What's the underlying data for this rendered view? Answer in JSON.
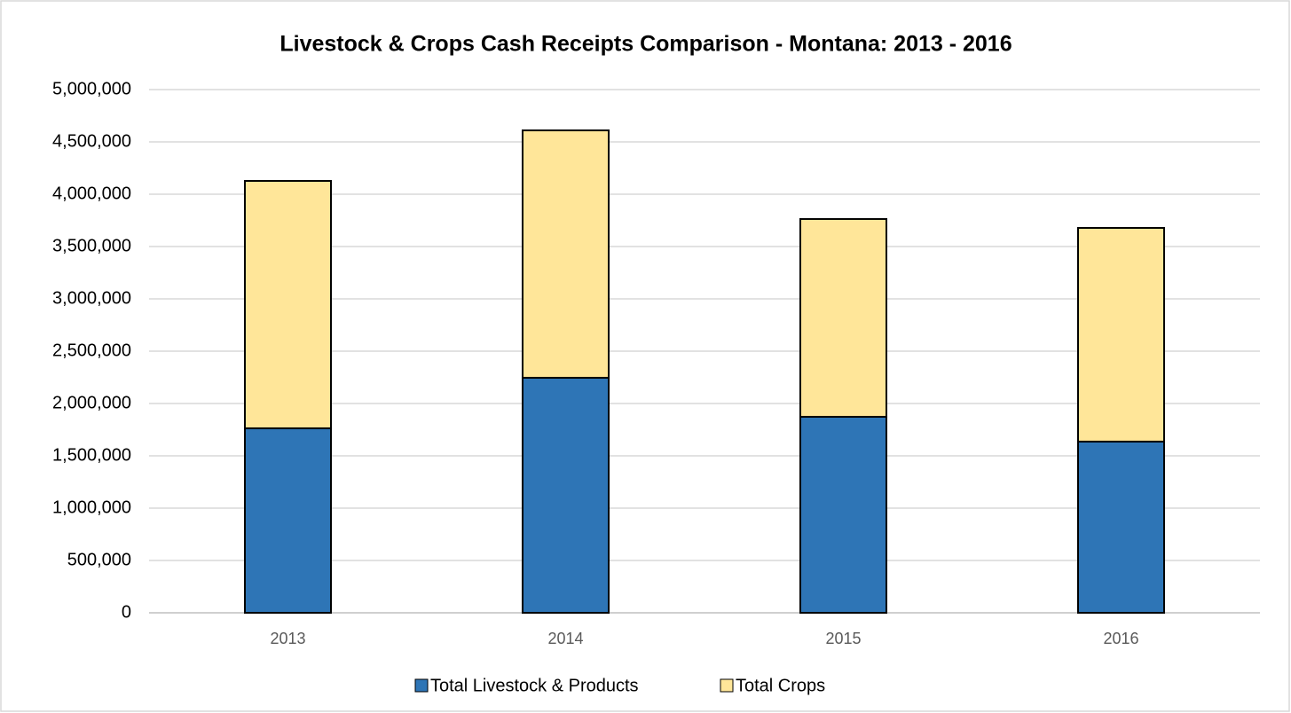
{
  "chart_data": {
    "type": "stacked_bar",
    "title": "Livestock  & Crops Cash Receipts Comparison - Montana: 2013 - 2016",
    "categories": [
      "2013",
      "2014",
      "2015",
      "2016"
    ],
    "series": [
      {
        "name": "Total Livestock & Products",
        "color": "#2e75b6",
        "values": [
          1763000,
          2246000,
          1873000,
          1636000
        ]
      },
      {
        "name": "Total Crops",
        "color": "#ffe699",
        "values": [
          2364000,
          2364000,
          1890000,
          2042000
        ]
      }
    ],
    "ylim": [
      0,
      5000000
    ],
    "yticks": [
      0,
      {
        "value": 500000,
        "label": "500,000"
      },
      {
        "value": 1000000,
        "label": "1,000,000"
      },
      {
        "value": 1500000,
        "label": "1,500,000"
      },
      {
        "value": 2000000,
        "label": "2,000,000"
      },
      {
        "value": 2500000,
        "label": "2,500,000"
      },
      {
        "value": 3000000,
        "label": "3,000,000"
      },
      {
        "value": 3500000,
        "label": "3,500,000"
      },
      {
        "value": 4000000,
        "label": "4,000,000"
      },
      {
        "value": 4500000,
        "label": "4,500,000"
      },
      {
        "value": 5000000,
        "label": "5,000,000"
      }
    ],
    "grid": true,
    "legend": "bottom"
  }
}
